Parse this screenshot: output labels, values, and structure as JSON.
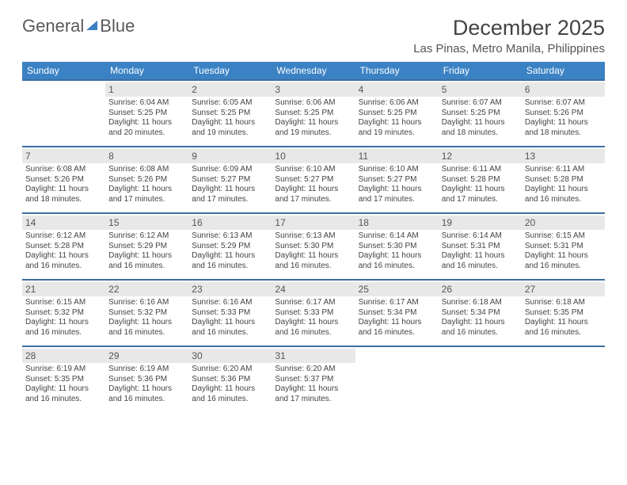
{
  "logo": {
    "word1": "General",
    "word2": "Blue"
  },
  "title": "December 2025",
  "location": "Las Pinas, Metro Manila, Philippines",
  "day_headers": [
    "Sunday",
    "Monday",
    "Tuesday",
    "Wednesday",
    "Thursday",
    "Friday",
    "Saturday"
  ],
  "colors": {
    "accent": "#3b82c4",
    "rule": "#3b6ea0",
    "daynum_bg": "#e8e8e8"
  },
  "weeks": [
    [
      null,
      {
        "n": "1",
        "sr": "6:04 AM",
        "ss": "5:25 PM",
        "dl": "11 hours and 20 minutes."
      },
      {
        "n": "2",
        "sr": "6:05 AM",
        "ss": "5:25 PM",
        "dl": "11 hours and 19 minutes."
      },
      {
        "n": "3",
        "sr": "6:06 AM",
        "ss": "5:25 PM",
        "dl": "11 hours and 19 minutes."
      },
      {
        "n": "4",
        "sr": "6:06 AM",
        "ss": "5:25 PM",
        "dl": "11 hours and 19 minutes."
      },
      {
        "n": "5",
        "sr": "6:07 AM",
        "ss": "5:25 PM",
        "dl": "11 hours and 18 minutes."
      },
      {
        "n": "6",
        "sr": "6:07 AM",
        "ss": "5:26 PM",
        "dl": "11 hours and 18 minutes."
      }
    ],
    [
      {
        "n": "7",
        "sr": "6:08 AM",
        "ss": "5:26 PM",
        "dl": "11 hours and 18 minutes."
      },
      {
        "n": "8",
        "sr": "6:08 AM",
        "ss": "5:26 PM",
        "dl": "11 hours and 17 minutes."
      },
      {
        "n": "9",
        "sr": "6:09 AM",
        "ss": "5:27 PM",
        "dl": "11 hours and 17 minutes."
      },
      {
        "n": "10",
        "sr": "6:10 AM",
        "ss": "5:27 PM",
        "dl": "11 hours and 17 minutes."
      },
      {
        "n": "11",
        "sr": "6:10 AM",
        "ss": "5:27 PM",
        "dl": "11 hours and 17 minutes."
      },
      {
        "n": "12",
        "sr": "6:11 AM",
        "ss": "5:28 PM",
        "dl": "11 hours and 17 minutes."
      },
      {
        "n": "13",
        "sr": "6:11 AM",
        "ss": "5:28 PM",
        "dl": "11 hours and 16 minutes."
      }
    ],
    [
      {
        "n": "14",
        "sr": "6:12 AM",
        "ss": "5:28 PM",
        "dl": "11 hours and 16 minutes."
      },
      {
        "n": "15",
        "sr": "6:12 AM",
        "ss": "5:29 PM",
        "dl": "11 hours and 16 minutes."
      },
      {
        "n": "16",
        "sr": "6:13 AM",
        "ss": "5:29 PM",
        "dl": "11 hours and 16 minutes."
      },
      {
        "n": "17",
        "sr": "6:13 AM",
        "ss": "5:30 PM",
        "dl": "11 hours and 16 minutes."
      },
      {
        "n": "18",
        "sr": "6:14 AM",
        "ss": "5:30 PM",
        "dl": "11 hours and 16 minutes."
      },
      {
        "n": "19",
        "sr": "6:14 AM",
        "ss": "5:31 PM",
        "dl": "11 hours and 16 minutes."
      },
      {
        "n": "20",
        "sr": "6:15 AM",
        "ss": "5:31 PM",
        "dl": "11 hours and 16 minutes."
      }
    ],
    [
      {
        "n": "21",
        "sr": "6:15 AM",
        "ss": "5:32 PM",
        "dl": "11 hours and 16 minutes."
      },
      {
        "n": "22",
        "sr": "6:16 AM",
        "ss": "5:32 PM",
        "dl": "11 hours and 16 minutes."
      },
      {
        "n": "23",
        "sr": "6:16 AM",
        "ss": "5:33 PM",
        "dl": "11 hours and 16 minutes."
      },
      {
        "n": "24",
        "sr": "6:17 AM",
        "ss": "5:33 PM",
        "dl": "11 hours and 16 minutes."
      },
      {
        "n": "25",
        "sr": "6:17 AM",
        "ss": "5:34 PM",
        "dl": "11 hours and 16 minutes."
      },
      {
        "n": "26",
        "sr": "6:18 AM",
        "ss": "5:34 PM",
        "dl": "11 hours and 16 minutes."
      },
      {
        "n": "27",
        "sr": "6:18 AM",
        "ss": "5:35 PM",
        "dl": "11 hours and 16 minutes."
      }
    ],
    [
      {
        "n": "28",
        "sr": "6:19 AM",
        "ss": "5:35 PM",
        "dl": "11 hours and 16 minutes."
      },
      {
        "n": "29",
        "sr": "6:19 AM",
        "ss": "5:36 PM",
        "dl": "11 hours and 16 minutes."
      },
      {
        "n": "30",
        "sr": "6:20 AM",
        "ss": "5:36 PM",
        "dl": "11 hours and 16 minutes."
      },
      {
        "n": "31",
        "sr": "6:20 AM",
        "ss": "5:37 PM",
        "dl": "11 hours and 17 minutes."
      },
      null,
      null,
      null
    ]
  ],
  "labels": {
    "sunrise": "Sunrise:",
    "sunset": "Sunset:",
    "daylight": "Daylight:"
  }
}
